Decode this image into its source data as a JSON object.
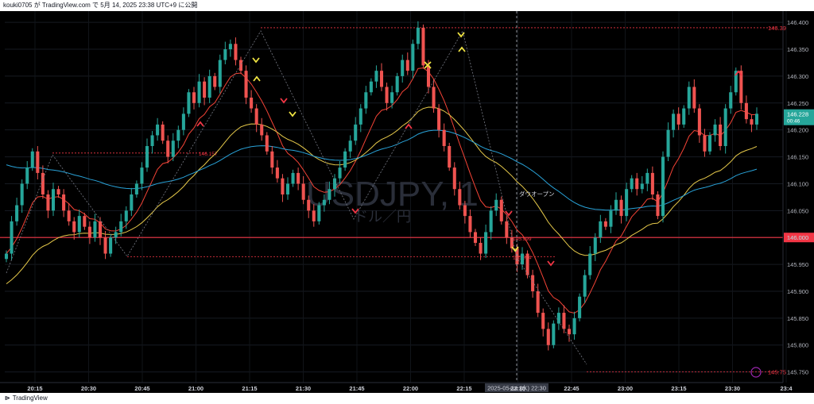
{
  "header": {
    "caption": "kouki0705 が TradingView.com で 5月 14, 2025 23:38 UTC+9 に公開"
  },
  "footer": {
    "brand": "TradingView"
  },
  "colors": {
    "up": "#26a69a",
    "down": "#ef5350",
    "ema_fast": "#f44336",
    "ema_slow": "#e6c94a",
    "ema_long": "#29a3d9",
    "level": "#f23645"
  },
  "chart_data": {
    "type": "candlestick",
    "symbol_watermark": "USDJPY, 1",
    "symbol_sub": "ドル／円",
    "y_ticks": [
      "146.400",
      "146.350",
      "146.300",
      "146.250",
      "146.200",
      "146.150",
      "146.100",
      "146.050",
      "146.000",
      "145.950",
      "145.900",
      "145.850",
      "145.800",
      "145.750"
    ],
    "ylim": [
      145.745,
      146.415
    ],
    "x_ticks": [
      "20:15",
      "20:30",
      "20:45",
      "21:00",
      "21:15",
      "21:30",
      "21:45",
      "22:00",
      "22:15",
      "22:30",
      "22:45",
      "23:00",
      "23:15",
      "23:30",
      "23:4"
    ],
    "crosshair_time": "2025-05-14 (水)  22:30",
    "current_price": "146.228",
    "countdown": "00:46",
    "horizontal_level": "146.000",
    "annotation": "ダウオープン",
    "high_label": "146.39",
    "low_label": "145.75",
    "small_labels": [
      "146.157",
      "145.999",
      "145.964"
    ],
    "candle_closes": [
      145.97,
      146.03,
      146.06,
      146.1,
      146.13,
      146.16,
      146.12,
      146.08,
      146.05,
      146.09,
      146.08,
      146.05,
      146.03,
      146.01,
      146.04,
      146.02,
      146.0,
      146.03,
      146.0,
      145.97,
      146.0,
      146.01,
      146.03,
      146.05,
      146.08,
      146.1,
      146.13,
      146.17,
      146.19,
      146.21,
      146.18,
      146.15,
      146.18,
      146.2,
      146.23,
      146.27,
      146.25,
      146.29,
      146.26,
      146.3,
      146.28,
      146.33,
      146.35,
      146.36,
      146.33,
      146.31,
      146.26,
      146.24,
      146.21,
      146.19,
      146.16,
      146.13,
      146.11,
      146.08,
      146.1,
      146.12,
      146.1,
      146.07,
      146.05,
      146.03,
      146.06,
      146.07,
      146.09,
      146.11,
      146.13,
      146.16,
      146.18,
      146.21,
      146.24,
      146.27,
      146.29,
      146.31,
      146.28,
      146.25,
      146.27,
      146.3,
      146.33,
      146.31,
      146.36,
      146.39,
      146.32,
      146.28,
      146.24,
      146.2,
      146.17,
      146.13,
      146.09,
      146.06,
      146.04,
      146.01,
      145.99,
      145.97,
      146.01,
      146.05,
      146.07,
      146.03,
      146.0,
      145.98,
      145.95,
      145.97,
      145.93,
      145.9,
      145.86,
      145.83,
      145.8,
      145.84,
      145.86,
      145.83,
      145.82,
      145.85,
      145.89,
      145.93,
      145.97,
      146.0,
      146.03,
      146.02,
      146.05,
      146.07,
      146.04,
      146.09,
      146.11,
      146.09,
      146.1,
      146.12,
      146.08,
      146.04,
      146.15,
      146.2,
      146.23,
      146.21,
      146.24,
      146.28,
      146.24,
      146.19,
      146.16,
      146.19,
      146.21,
      146.17,
      146.24,
      146.27,
      146.31,
      146.25,
      146.22,
      146.21,
      146.23
    ]
  }
}
